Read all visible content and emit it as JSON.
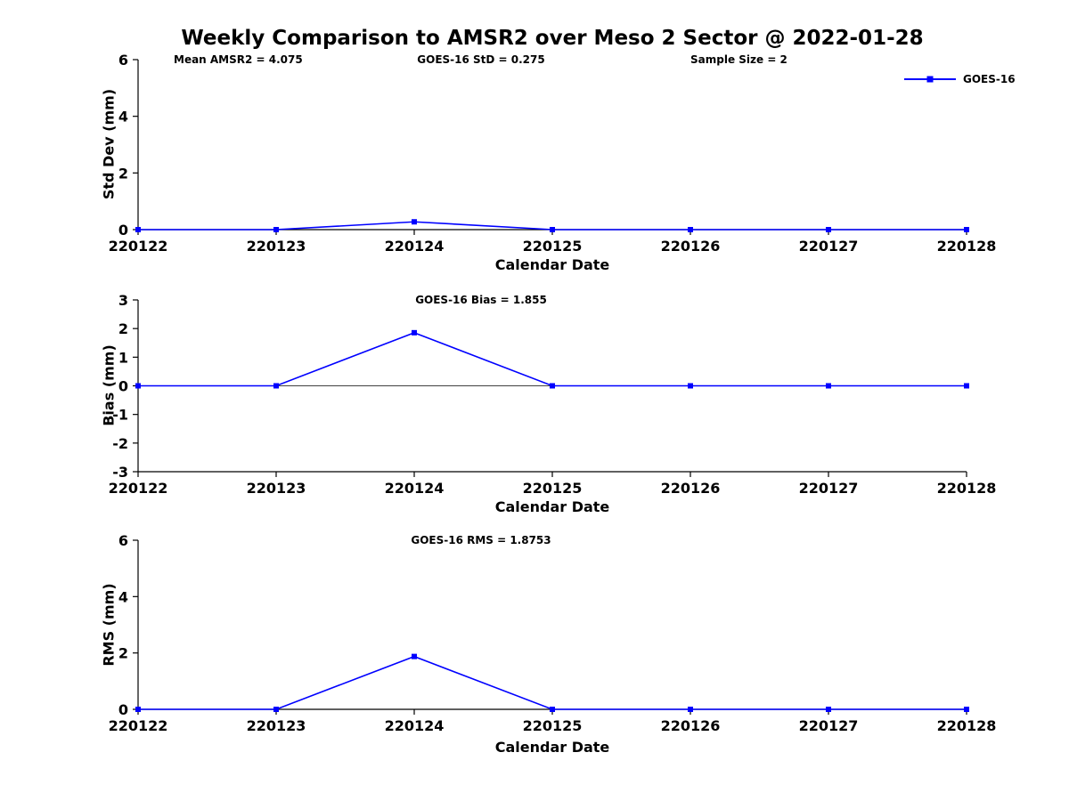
{
  "figure": {
    "title": "Weekly Comparison to AMSR2 over Meso 2 Sector @ 2022-01-28",
    "legend": {
      "label": "GOES-16",
      "color": "#0000ff"
    }
  },
  "chart_data": [
    {
      "type": "line",
      "name": "std-dev",
      "annotations": [
        "Mean AMSR2 = 4.075",
        "GOES-16 StD = 0.275",
        "Sample Size = 2"
      ],
      "ylabel": "Std Dev (mm)",
      "xlabel": "Calendar Date",
      "x": [
        "220122",
        "220123",
        "220124",
        "220125",
        "220126",
        "220127",
        "220128"
      ],
      "series": [
        {
          "name": "GOES-16",
          "color": "#0000ff",
          "marker": "square",
          "values": [
            0,
            0,
            0.275,
            0,
            0,
            0,
            0
          ]
        }
      ],
      "ylim": [
        0,
        6
      ],
      "yticks": [
        0,
        2,
        4,
        6
      ],
      "zero_line": false,
      "grid": false
    },
    {
      "type": "line",
      "name": "bias",
      "annotations": [
        "GOES-16 Bias  = 1.855"
      ],
      "ylabel": "Bias (mm)",
      "xlabel": "Calendar Date",
      "x": [
        "220122",
        "220123",
        "220124",
        "220125",
        "220126",
        "220127",
        "220128"
      ],
      "series": [
        {
          "name": "GOES-16",
          "color": "#0000ff",
          "marker": "square",
          "values": [
            0,
            0,
            1.855,
            0,
            0,
            0,
            0
          ]
        }
      ],
      "ylim": [
        -3,
        3
      ],
      "yticks": [
        -3,
        -2,
        -1,
        0,
        1,
        2,
        3
      ],
      "zero_line": true,
      "grid": false
    },
    {
      "type": "line",
      "name": "rms",
      "annotations": [
        "GOES-16 RMS = 1.8753"
      ],
      "ylabel": "RMS (mm)",
      "xlabel": "Calendar Date",
      "x": [
        "220122",
        "220123",
        "220124",
        "220125",
        "220126",
        "220127",
        "220128"
      ],
      "series": [
        {
          "name": "GOES-16",
          "color": "#0000ff",
          "marker": "square",
          "values": [
            0,
            0,
            1.8753,
            0,
            0,
            0,
            0
          ]
        }
      ],
      "ylim": [
        0,
        6
      ],
      "yticks": [
        0,
        2,
        4,
        6
      ],
      "zero_line": false,
      "grid": false
    }
  ]
}
